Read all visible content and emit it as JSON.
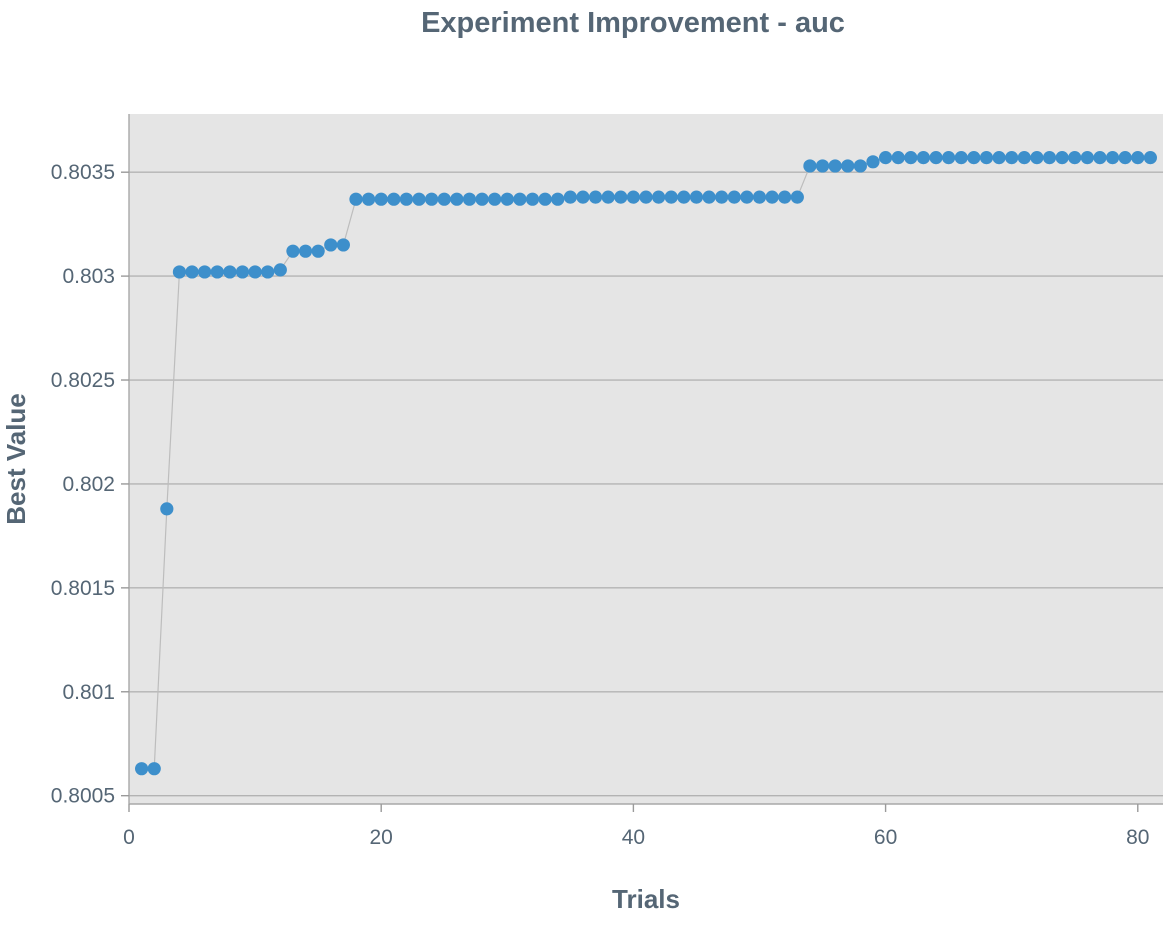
{
  "chart_data": {
    "type": "scatter",
    "title": "Experiment Improvement - auc",
    "xlabel": "Trials",
    "ylabel": "Best Value",
    "xlim": [
      0,
      82
    ],
    "ylim": [
      0.80046,
      0.80378
    ],
    "xticks": [
      0,
      20,
      40,
      60,
      80
    ],
    "xtick_labels": [
      "0",
      "20",
      "40",
      "60",
      "80"
    ],
    "yticks": [
      0.8005,
      0.801,
      0.8015,
      0.802,
      0.8025,
      0.803,
      0.8035
    ],
    "ytick_labels": [
      "0.8005",
      "0.801",
      "0.8015",
      "0.802",
      "0.8025",
      "0.803",
      "0.8035"
    ],
    "grid": true,
    "connect_points": true,
    "series": [
      {
        "x": [
          1,
          2,
          3,
          4,
          5,
          6,
          7,
          8,
          9,
          10,
          11,
          12,
          13,
          14,
          15,
          16,
          17,
          18,
          19,
          20,
          21,
          22,
          23,
          24,
          25,
          26,
          27,
          28,
          29,
          30,
          31,
          32,
          33,
          34,
          35,
          36,
          37,
          38,
          39,
          40,
          41,
          42,
          43,
          44,
          45,
          46,
          47,
          48,
          49,
          50,
          51,
          52,
          53,
          54,
          55,
          56,
          57,
          58,
          59,
          60,
          61,
          62,
          63,
          64,
          65,
          66,
          67,
          68,
          69,
          70,
          71,
          72,
          73,
          74,
          75,
          76,
          77,
          78,
          79,
          80,
          81
        ],
        "y": [
          0.80063,
          0.80063,
          0.80188,
          0.80302,
          0.80302,
          0.80302,
          0.80302,
          0.80302,
          0.80302,
          0.80302,
          0.80302,
          0.80303,
          0.80312,
          0.80312,
          0.80312,
          0.80315,
          0.80315,
          0.80337,
          0.80337,
          0.80337,
          0.80337,
          0.80337,
          0.80337,
          0.80337,
          0.80337,
          0.80337,
          0.80337,
          0.80337,
          0.80337,
          0.80337,
          0.80337,
          0.80337,
          0.80337,
          0.80337,
          0.80338,
          0.80338,
          0.80338,
          0.80338,
          0.80338,
          0.80338,
          0.80338,
          0.80338,
          0.80338,
          0.80338,
          0.80338,
          0.80338,
          0.80338,
          0.80338,
          0.80338,
          0.80338,
          0.80338,
          0.80338,
          0.80338,
          0.80353,
          0.80353,
          0.80353,
          0.80353,
          0.80353,
          0.80355,
          0.80357,
          0.80357,
          0.80357,
          0.80357,
          0.80357,
          0.80357,
          0.80357,
          0.80357,
          0.80357,
          0.80357,
          0.80357,
          0.80357,
          0.80357,
          0.80357,
          0.80357,
          0.80357,
          0.80357,
          0.80357,
          0.80357,
          0.80357,
          0.80357,
          0.80357
        ]
      }
    ],
    "colors": {
      "point": "#3d8fcb",
      "line": "#bdbdbd",
      "plot_bg": "#e5e5e5",
      "grid": "#b3b3b3",
      "text": "#556675"
    }
  }
}
